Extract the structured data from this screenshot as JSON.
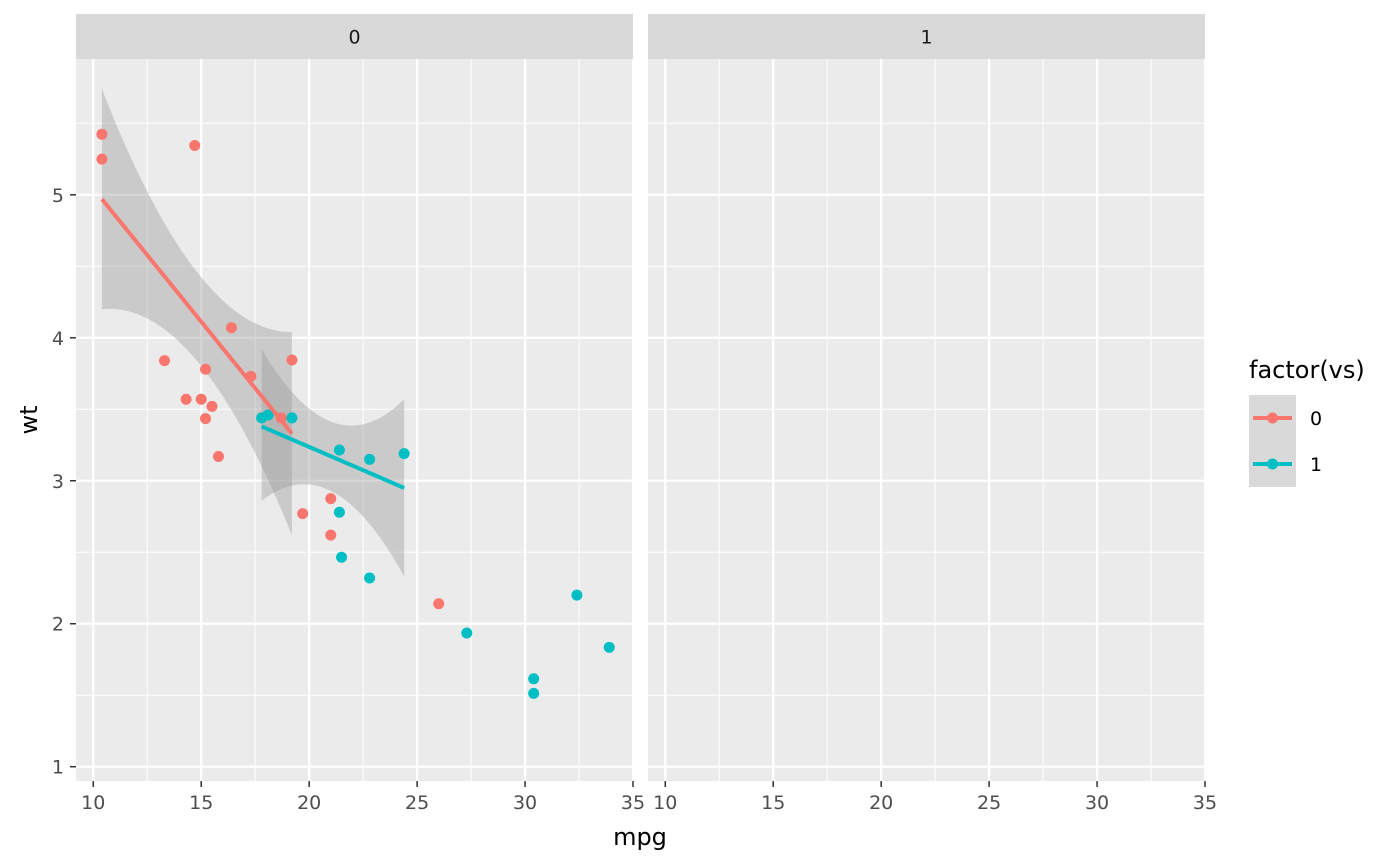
{
  "chart_data": {
    "type": "scatter",
    "xlabel": "mpg",
    "ylabel": "wt",
    "xlim": [
      9.2,
      35.0
    ],
    "ylim": [
      0.9,
      5.95
    ],
    "x_ticks": [
      10,
      15,
      20,
      25,
      30,
      35
    ],
    "y_ticks": [
      1,
      2,
      3,
      4,
      5
    ],
    "facets": [
      {
        "label": "0",
        "series": [
          {
            "name": "0",
            "color": "#F8766D",
            "points": [
              [
                21.0,
                2.62
              ],
              [
                21.0,
                2.875
              ],
              [
                18.7,
                3.44
              ],
              [
                18.1,
                3.46
              ],
              [
                14.3,
                3.57
              ],
              [
                16.4,
                4.07
              ],
              [
                17.3,
                3.73
              ],
              [
                15.2,
                3.78
              ],
              [
                10.4,
                5.25
              ],
              [
                10.4,
                5.424
              ],
              [
                14.7,
                5.345
              ],
              [
                15.5,
                3.52
              ],
              [
                15.2,
                3.435
              ],
              [
                13.3,
                3.84
              ],
              [
                19.2,
                3.845
              ],
              [
                26.0,
                2.14
              ],
              [
                15.8,
                3.17
              ],
              [
                19.7,
                2.77
              ],
              [
                15.0,
                3.57
              ]
            ],
            "fit": {
              "x": [
                10.4,
                19.2
              ],
              "y": [
                4.97,
                3.33
              ],
              "ci_lower_at_ends": [
                4.2,
                2.62
              ],
              "ci_upper_at_ends": [
                5.74,
                4.04
              ]
            }
          },
          {
            "name": "1",
            "color": "#00BFC4",
            "points": [
              [
                22.8,
                2.32
              ],
              [
                21.4,
                3.215
              ],
              [
                18.1,
                3.46
              ],
              [
                24.4,
                3.19
              ],
              [
                22.8,
                3.15
              ],
              [
                19.2,
                3.44
              ],
              [
                17.8,
                3.44
              ],
              [
                32.4,
                2.2
              ],
              [
                30.4,
                1.615
              ],
              [
                33.9,
                1.835
              ],
              [
                21.5,
                2.465
              ],
              [
                27.3,
                1.935
              ],
              [
                30.4,
                1.513
              ],
              [
                21.4,
                2.78
              ]
            ],
            "fit": {
              "x": [
                17.8,
                24.4
              ],
              "y": [
                3.38,
                2.95
              ],
              "ci_lower_at_ends": [
                2.86,
                2.33
              ],
              "ci_upper_at_ends": [
                3.92,
                3.57
              ]
            }
          }
        ]
      },
      {
        "label": "1",
        "series": []
      }
    ],
    "legend": {
      "title": "factor(vs)",
      "entries": [
        {
          "label": "0",
          "color": "#F8766D"
        },
        {
          "label": "1",
          "color": "#00BFC4"
        }
      ],
      "position": "right"
    },
    "grid": true
  }
}
